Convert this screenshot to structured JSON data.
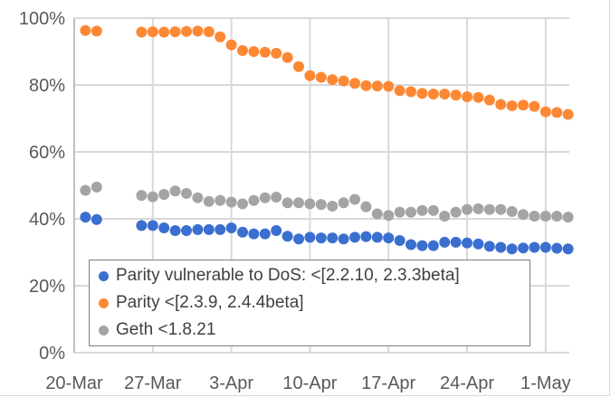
{
  "chart_data": {
    "type": "scatter",
    "title": "",
    "xlabel": "",
    "ylabel": "",
    "ylim": [
      0,
      100
    ],
    "y_ticks": [
      "0%",
      "20%",
      "40%",
      "60%",
      "80%",
      "100%"
    ],
    "x_ticks": [
      "20-Mar",
      "27-Mar",
      "3-Apr",
      "10-Apr",
      "17-Apr",
      "24-Apr",
      "1-May"
    ],
    "grid": true,
    "legend_position": "inside-bottom-left",
    "x_day_offsets": [
      1,
      2,
      6,
      7,
      8,
      9,
      10,
      11,
      12,
      13,
      14,
      15,
      16,
      17,
      18,
      19,
      20,
      21,
      22,
      23,
      24,
      25,
      26,
      27,
      28,
      29,
      30,
      31,
      32,
      33,
      34,
      35,
      36,
      37,
      38,
      39,
      40,
      41,
      42,
      43,
      44
    ],
    "series": [
      {
        "name": "Parity vulnerable to DoS: <[2.2.10, 2.3.3beta]",
        "color": "#4472c4",
        "values": [
          40.5,
          39.8,
          38.0,
          38.0,
          37.3,
          36.5,
          36.5,
          36.8,
          36.8,
          36.8,
          37.3,
          36.0,
          35.5,
          35.5,
          36.5,
          34.8,
          34.0,
          34.5,
          34.3,
          34.3,
          34.0,
          34.5,
          34.7,
          34.5,
          34.3,
          33.5,
          32.3,
          32.0,
          32.0,
          33.0,
          33.0,
          32.8,
          32.5,
          31.8,
          31.5,
          31.0,
          31.3,
          31.5,
          31.5,
          31.2,
          31.0
        ],
        "marker_color": "#3a6fd0"
      },
      {
        "name": "Parity <[2.3.9, 2.4.4beta]",
        "color": "#f28a30",
        "values": [
          96.3,
          96.1,
          95.8,
          95.9,
          95.8,
          95.9,
          96.0,
          96.1,
          95.9,
          94.4,
          92.0,
          90.3,
          90.0,
          89.8,
          89.5,
          88.2,
          85.5,
          82.8,
          82.3,
          81.6,
          81.2,
          80.5,
          79.8,
          79.7,
          79.6,
          78.3,
          78.0,
          77.5,
          77.3,
          77.3,
          77.0,
          76.5,
          76.3,
          75.5,
          74.2,
          73.8,
          74.0,
          73.6,
          72.0,
          71.8,
          71.2
        ],
        "marker_color": "#fd8834"
      },
      {
        "name": "Geth <1.8.21",
        "color": "#a5a5a5",
        "values": [
          48.5,
          49.5,
          47.0,
          46.6,
          47.3,
          48.3,
          47.6,
          46.3,
          45.2,
          45.5,
          45.0,
          44.5,
          45.5,
          46.3,
          46.5,
          44.8,
          44.8,
          44.5,
          44.3,
          43.8,
          44.8,
          45.8,
          43.6,
          41.5,
          41.0,
          42.0,
          42.0,
          42.5,
          42.5,
          40.8,
          42.0,
          42.8,
          43.0,
          42.8,
          42.8,
          42.2,
          41.3,
          40.8,
          40.8,
          40.8,
          40.5
        ],
        "marker_color": "#a5a3a6"
      }
    ]
  },
  "legend": {
    "items": [
      {
        "label": "Parity vulnerable to DoS: <[2.2.10, 2.3.3beta]",
        "color": "#3a6fd0"
      },
      {
        "label": "Parity <[2.3.9, 2.4.4beta]",
        "color": "#fd8834"
      },
      {
        "label": "Geth <1.8.21",
        "color": "#a5a3a6"
      }
    ]
  },
  "colors": {
    "grid": "#d9d9d9",
    "axis_text": "#595959",
    "legend_border": "#7f7f7f"
  }
}
